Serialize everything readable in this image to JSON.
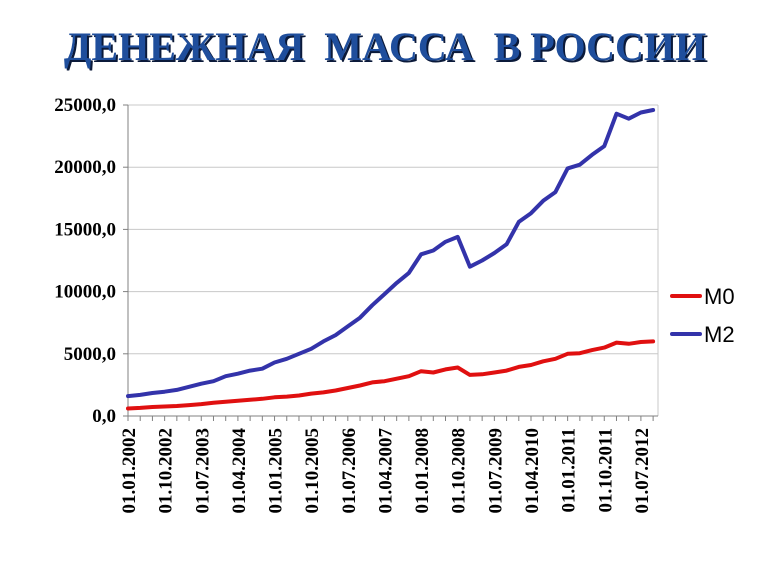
{
  "chart_data": {
    "type": "line",
    "title": "ДЕНЕЖНАЯ  МАССА  В РОССИИ",
    "xlabel": "",
    "ylabel": "",
    "ylim": [
      0,
      25000
    ],
    "yticks": [
      "0,0",
      "5000,0",
      "10000,0",
      "15000,0",
      "20000,0",
      "25000,0"
    ],
    "ytick_values": [
      0,
      5000,
      10000,
      15000,
      20000,
      25000
    ],
    "xticks": [
      "01.01.2002",
      "01.10.2002",
      "01.07.2003",
      "01.04.2004",
      "01.01.2005",
      "01.10.2005",
      "01.07.2006",
      "01.04.2007",
      "01.01.2008",
      "01.10.2008",
      "01.07.2009",
      "01.04.2010",
      "01.01.2011",
      "01.10.2011",
      "01.07.2012"
    ],
    "grid": true,
    "legend_position": "right",
    "colors": {
      "M0": "#e01010",
      "M2": "#3333aa",
      "title": "#1f4e9c"
    },
    "series": [
      {
        "name": "M0",
        "points": [
          [
            "01.01.2002",
            600
          ],
          [
            "01.04.2002",
            650
          ],
          [
            "01.07.2002",
            720
          ],
          [
            "01.10.2002",
            760
          ],
          [
            "01.01.2003",
            800
          ],
          [
            "01.04.2003",
            880
          ],
          [
            "01.07.2003",
            960
          ],
          [
            "01.10.2003",
            1060
          ],
          [
            "01.01.2004",
            1150
          ],
          [
            "01.04.2004",
            1230
          ],
          [
            "01.07.2004",
            1300
          ],
          [
            "01.10.2004",
            1380
          ],
          [
            "01.01.2005",
            1500
          ],
          [
            "01.04.2005",
            1560
          ],
          [
            "01.07.2005",
            1650
          ],
          [
            "01.10.2005",
            1800
          ],
          [
            "01.01.2006",
            1900
          ],
          [
            "01.04.2006",
            2050
          ],
          [
            "01.07.2006",
            2250
          ],
          [
            "01.10.2006",
            2450
          ],
          [
            "01.01.2007",
            2700
          ],
          [
            "01.04.2007",
            2800
          ],
          [
            "01.07.2007",
            3000
          ],
          [
            "01.10.2007",
            3200
          ],
          [
            "01.01.2008",
            3600
          ],
          [
            "01.04.2008",
            3500
          ],
          [
            "01.07.2008",
            3750
          ],
          [
            "01.10.2008",
            3900
          ],
          [
            "01.01.2009",
            3300
          ],
          [
            "01.04.2009",
            3350
          ],
          [
            "01.07.2009",
            3500
          ],
          [
            "01.10.2009",
            3650
          ],
          [
            "01.01.2010",
            3950
          ],
          [
            "01.04.2010",
            4100
          ],
          [
            "01.07.2010",
            4400
          ],
          [
            "01.10.2010",
            4600
          ],
          [
            "01.01.2011",
            5000
          ],
          [
            "01.04.2011",
            5050
          ],
          [
            "01.07.2011",
            5300
          ],
          [
            "01.10.2011",
            5500
          ],
          [
            "01.01.2012",
            5900
          ],
          [
            "01.04.2012",
            5800
          ],
          [
            "01.07.2012",
            5950
          ],
          [
            "01.10.2012",
            6000
          ]
        ]
      },
      {
        "name": "M2",
        "points": [
          [
            "01.01.2002",
            1600
          ],
          [
            "01.04.2002",
            1700
          ],
          [
            "01.07.2002",
            1850
          ],
          [
            "01.10.2002",
            1950
          ],
          [
            "01.01.2003",
            2100
          ],
          [
            "01.04.2003",
            2350
          ],
          [
            "01.07.2003",
            2600
          ],
          [
            "01.10.2003",
            2800
          ],
          [
            "01.01.2004",
            3200
          ],
          [
            "01.04.2004",
            3400
          ],
          [
            "01.07.2004",
            3650
          ],
          [
            "01.10.2004",
            3800
          ],
          [
            "01.01.2005",
            4300
          ],
          [
            "01.04.2005",
            4600
          ],
          [
            "01.07.2005",
            5000
          ],
          [
            "01.10.2005",
            5400
          ],
          [
            "01.01.2006",
            6000
          ],
          [
            "01.04.2006",
            6500
          ],
          [
            "01.07.2006",
            7200
          ],
          [
            "01.10.2006",
            7900
          ],
          [
            "01.01.2007",
            8900
          ],
          [
            "01.04.2007",
            9800
          ],
          [
            "01.07.2007",
            10700
          ],
          [
            "01.10.2007",
            11500
          ],
          [
            "01.01.2008",
            13000
          ],
          [
            "01.04.2008",
            13300
          ],
          [
            "01.07.2008",
            14000
          ],
          [
            "01.10.2008",
            14400
          ],
          [
            "01.01.2009",
            12000
          ],
          [
            "01.04.2009",
            12500
          ],
          [
            "01.07.2009",
            13100
          ],
          [
            "01.10.2009",
            13800
          ],
          [
            "01.01.2010",
            15600
          ],
          [
            "01.04.2010",
            16300
          ],
          [
            "01.07.2010",
            17300
          ],
          [
            "01.10.2010",
            18000
          ],
          [
            "01.01.2011",
            19900
          ],
          [
            "01.04.2011",
            20200
          ],
          [
            "01.07.2011",
            21000
          ],
          [
            "01.10.2011",
            21700
          ],
          [
            "01.01.2012",
            24300
          ],
          [
            "01.04.2012",
            23900
          ],
          [
            "01.07.2012",
            24400
          ],
          [
            "01.10.2012",
            24600
          ]
        ]
      }
    ]
  }
}
